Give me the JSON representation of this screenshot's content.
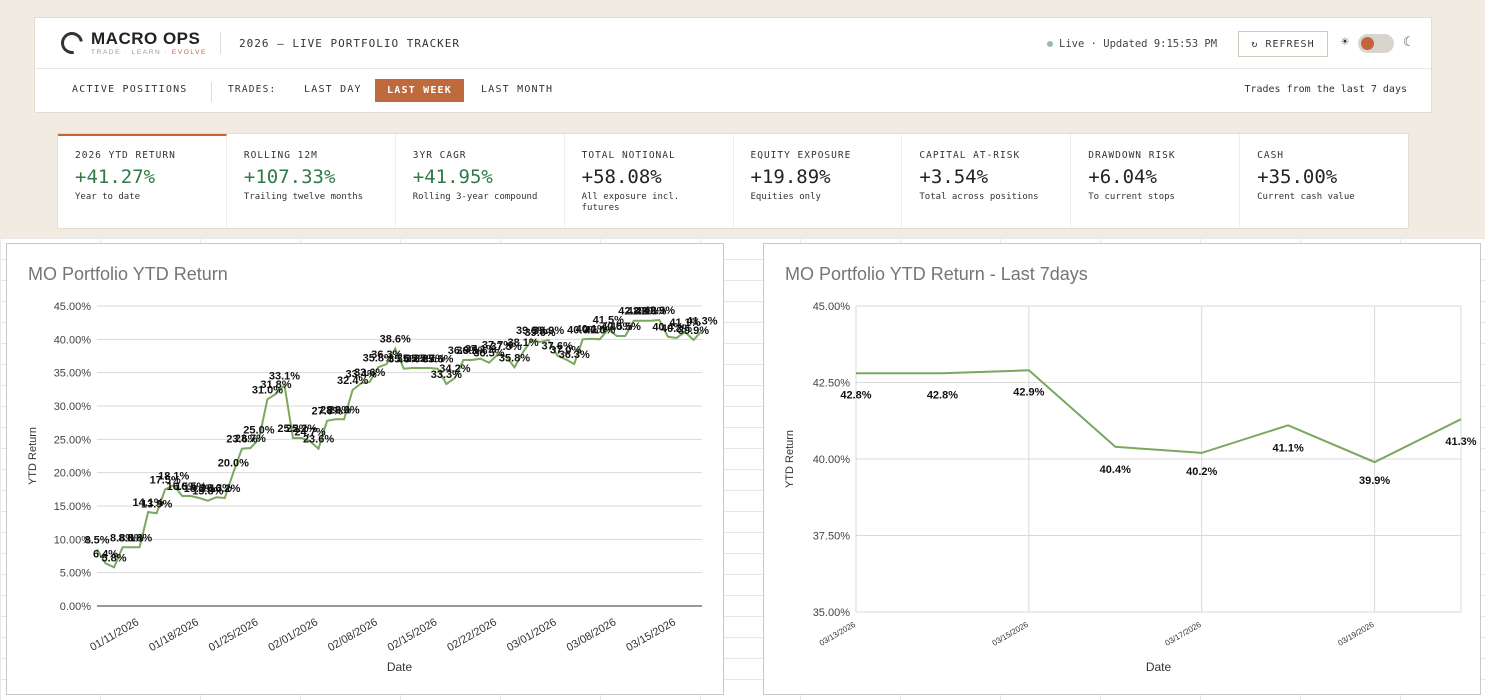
{
  "header": {
    "brand": "MACRO OPS",
    "tagline_a": "TRADE · LEARN · ",
    "tagline_b": "EVOLVE",
    "title": "2026 — LIVE PORTFOLIO TRACKER",
    "live_status": "Live · Updated 9:15:53 PM",
    "refresh_label": "↻ REFRESH",
    "sun_icon": "☀",
    "moon_icon": "☾",
    "accent_color": "#c4643a"
  },
  "nav": {
    "active_positions": "ACTIVE POSITIONS",
    "trades_label": "TRADES:",
    "last_day": "LAST DAY",
    "last_week": "LAST WEEK",
    "last_month": "LAST MONTH",
    "note": "Trades from the last 7 days",
    "selected": "LAST WEEK"
  },
  "stats": [
    {
      "label": "2026 YTD RETURN",
      "value": "+41.27%",
      "sub": "Year to date",
      "positive": true
    },
    {
      "label": "ROLLING 12M",
      "value": "+107.33%",
      "sub": "Trailing twelve months",
      "positive": true
    },
    {
      "label": "3YR CAGR",
      "value": "+41.95%",
      "sub": "Rolling 3-year compound",
      "positive": true
    },
    {
      "label": "TOTAL NOTIONAL",
      "value": "+58.08%",
      "sub": "All exposure incl. futures",
      "positive": false
    },
    {
      "label": "EQUITY EXPOSURE",
      "value": "+19.89%",
      "sub": "Equities only",
      "positive": false
    },
    {
      "label": "CAPITAL AT-RISK",
      "value": "+3.54%",
      "sub": "Total across positions",
      "positive": false
    },
    {
      "label": "DRAWDOWN RISK",
      "value": "+6.04%",
      "sub": "To current stops",
      "positive": false
    },
    {
      "label": "CASH",
      "value": "+35.00%",
      "sub": "Current cash value",
      "positive": false
    }
  ],
  "chart_data": [
    {
      "type": "line",
      "title": "MO Portfolio YTD Return",
      "xlabel": "Date",
      "ylabel": "YTD Return",
      "ylim": [
        0,
        45
      ],
      "yticks": [
        "0.00%",
        "5.00%",
        "10.00%",
        "15.00%",
        "20.00%",
        "25.00%",
        "30.00%",
        "35.00%",
        "40.00%",
        "45.00%"
      ],
      "xticks": [
        "01/11/2026",
        "01/18/2026",
        "01/25/2026",
        "02/01/2026",
        "02/08/2026",
        "02/15/2026",
        "02/22/2026",
        "03/01/2026",
        "03/08/2026",
        "03/15/2026"
      ],
      "x_start": "2026-01-06",
      "line_color": "#7aa85e",
      "grid": true,
      "series": [
        {
          "values": [
            8.5,
            6.4,
            5.8,
            8.8,
            8.8,
            8.8,
            14.1,
            13.9,
            17.5,
            18.1,
            16.5,
            16.5,
            16.2,
            15.8,
            16.3,
            16.2,
            20.0,
            23.6,
            23.7,
            25.0,
            31.0,
            31.8,
            33.1,
            25.2,
            25.2,
            24.7,
            23.6,
            27.8,
            28.0,
            28.0,
            32.4,
            33.4,
            33.6,
            35.8,
            36.3,
            38.6,
            35.6,
            35.7,
            35.7,
            35.7,
            35.6,
            33.3,
            34.2,
            36.9,
            36.9,
            37.1,
            36.5,
            37.7,
            37.5,
            35.8,
            38.1,
            39.9,
            39.6,
            39.9,
            37.6,
            37.0,
            36.3,
            40.0,
            40.1,
            40.0,
            41.5,
            40.5,
            40.5,
            42.8,
            42.8,
            42.8,
            42.9,
            40.4,
            40.2,
            41.1,
            39.9,
            41.3
          ],
          "labels": [
            "8.5%",
            "6.4%",
            "5.8%",
            "8.8%",
            "8.8%",
            "8.8%",
            "14.1%",
            "13.9%",
            "17.5%",
            "18.1%",
            "16.5%",
            "16.5%",
            "16.2%",
            "15.8%",
            "16.3%",
            "16.2%",
            "20.0%",
            "23.6%",
            "23.7%",
            "25.0%",
            "31.0%",
            "31.8%",
            "33.1%",
            "25.2%",
            "25.2%",
            "24.7%",
            "23.6%",
            "27.8%",
            "28.0%",
            "28.0%",
            "32.4%",
            "33.4%",
            "33.6%",
            "35.8%",
            "36.3%",
            "38.6%",
            "35.6%",
            "35.7%",
            "35.7%",
            "35.7%",
            "35.6%",
            "33.3%",
            "34.2%",
            "36.9%",
            "36.9%",
            "37.1%",
            "36.5%",
            "37.7%",
            "37.5%",
            "35.8%",
            "38.1%",
            "39.9%",
            "39.6%",
            "39.9%",
            "37.6%",
            "37.0%",
            "36.3%",
            "40.0%",
            "40.1%",
            "40.0%",
            "41.5%",
            "40.5%",
            "40.5%",
            "42.8%",
            "42.8%",
            "42.8%",
            "42.9%",
            "40.4%",
            "40.2%",
            "41.1%",
            "39.9%",
            "41.3%"
          ]
        }
      ]
    },
    {
      "type": "line",
      "title": "MO Portfolio YTD Return - Last 7days",
      "xlabel": "Date",
      "ylabel": "YTD Return",
      "ylim": [
        35,
        45
      ],
      "yticks": [
        "35.00%",
        "37.50%",
        "40.00%",
        "42.50%",
        "45.00%"
      ],
      "xticks": [
        "03/13/2026",
        "03/15/2026",
        "03/17/2026",
        "03/19/2026"
      ],
      "line_color": "#7aa85e",
      "grid": true,
      "series": [
        {
          "values": [
            42.8,
            42.8,
            42.9,
            40.4,
            40.2,
            41.1,
            39.9,
            41.3
          ],
          "labels": [
            "42.8%",
            "42.8%",
            "42.9%",
            "40.4%",
            "40.2%",
            "41.1%",
            "39.9%",
            "41.3%"
          ]
        }
      ]
    }
  ]
}
